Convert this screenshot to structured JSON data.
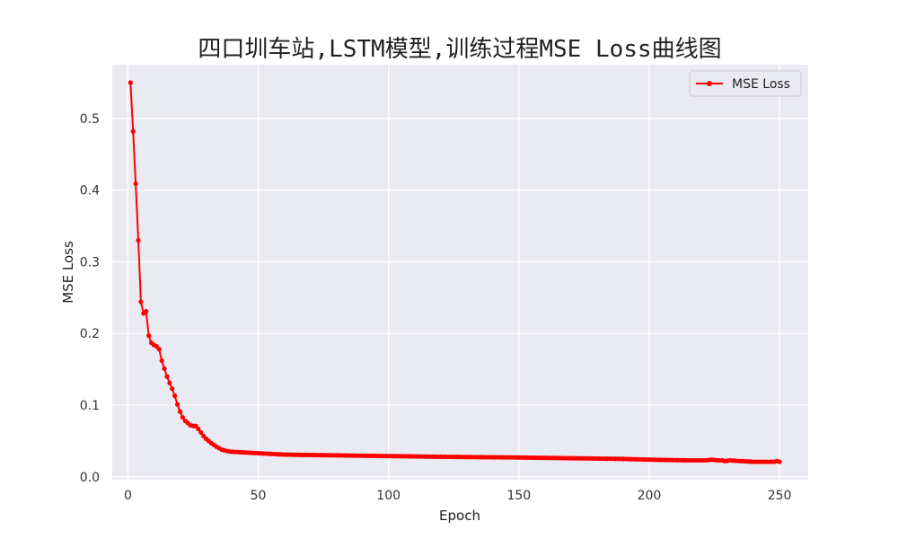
{
  "chart_data": {
    "type": "line",
    "title": "四口圳车站,LSTM模型,训练过程MSE Loss曲线图",
    "xlabel": "Epoch",
    "ylabel": "MSE Loss",
    "xlim": [
      -6,
      261
    ],
    "ylim": [
      -0.004,
      0.575
    ],
    "xticks": [
      0,
      50,
      100,
      150,
      200,
      250
    ],
    "xtick_labels": [
      "0",
      "50",
      "100",
      "150",
      "200",
      "250"
    ],
    "yticks": [
      0.0,
      0.1,
      0.2,
      0.3,
      0.4,
      0.5
    ],
    "ytick_labels": [
      "0.0",
      "0.1",
      "0.2",
      "0.3",
      "0.4",
      "0.5"
    ],
    "grid": true,
    "legend_position": "top-right",
    "colors": {
      "plot_bg": "#eaeaf2",
      "grid": "#ffffff",
      "line": "#ff0000"
    },
    "series": [
      {
        "name": "MSE Loss",
        "marker": "dot",
        "keypoints": [
          [
            1,
            0.55
          ],
          [
            2,
            0.482
          ],
          [
            3,
            0.409
          ],
          [
            4,
            0.33
          ],
          [
            5,
            0.244
          ],
          [
            6,
            0.228
          ],
          [
            7,
            0.231
          ],
          [
            8,
            0.197
          ],
          [
            9,
            0.187
          ],
          [
            10,
            0.184
          ],
          [
            11,
            0.182
          ],
          [
            12,
            0.178
          ],
          [
            13,
            0.162
          ],
          [
            14,
            0.151
          ],
          [
            15,
            0.14
          ],
          [
            16,
            0.131
          ],
          [
            17,
            0.123
          ],
          [
            18,
            0.113
          ],
          [
            19,
            0.101
          ],
          [
            20,
            0.091
          ],
          [
            21,
            0.083
          ],
          [
            22,
            0.078
          ],
          [
            23,
            0.075
          ],
          [
            24,
            0.072
          ],
          [
            25,
            0.071
          ],
          [
            26,
            0.071
          ],
          [
            27,
            0.067
          ],
          [
            28,
            0.062
          ],
          [
            29,
            0.057
          ],
          [
            30,
            0.053
          ],
          [
            32,
            0.047
          ],
          [
            34,
            0.042
          ],
          [
            36,
            0.038
          ],
          [
            38,
            0.036
          ],
          [
            40,
            0.035
          ],
          [
            45,
            0.034
          ],
          [
            50,
            0.033
          ],
          [
            55,
            0.032
          ],
          [
            60,
            0.031
          ],
          [
            80,
            0.03
          ],
          [
            100,
            0.029
          ],
          [
            120,
            0.028
          ],
          [
            150,
            0.027
          ],
          [
            170,
            0.026
          ],
          [
            190,
            0.025
          ],
          [
            200,
            0.024
          ],
          [
            215,
            0.023
          ],
          [
            222,
            0.023
          ],
          [
            224,
            0.024
          ],
          [
            226,
            0.023
          ],
          [
            228,
            0.023
          ],
          [
            229,
            0.022
          ],
          [
            231,
            0.023
          ],
          [
            235,
            0.022
          ],
          [
            240,
            0.021
          ],
          [
            245,
            0.021
          ],
          [
            248,
            0.021
          ],
          [
            249,
            0.022
          ],
          [
            250,
            0.021
          ]
        ]
      }
    ]
  }
}
